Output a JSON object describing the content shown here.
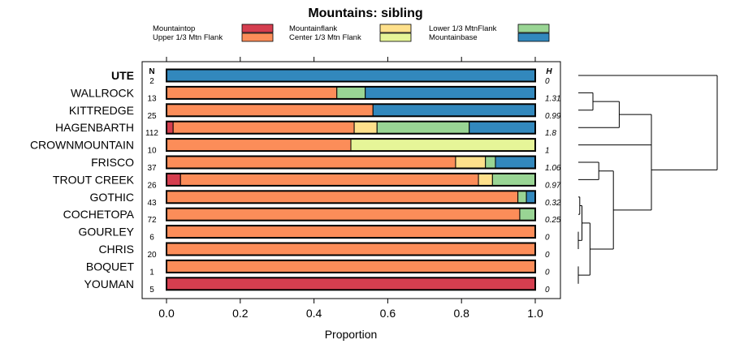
{
  "chart_data": {
    "type": "bar",
    "subtype": "stacked-horizontal-proportion",
    "title": "Mountains: sibling",
    "xlabel": "Proportion",
    "ylabel": "",
    "xlim": [
      0,
      1
    ],
    "x_ticks": [
      0.0,
      0.2,
      0.4,
      0.6,
      0.8,
      1.0
    ],
    "x_tick_labels": [
      "0.0",
      "0.2",
      "0.4",
      "0.6",
      "0.8",
      "1.0"
    ],
    "n_header": "N",
    "h_header": "H",
    "legend": [
      {
        "name": "Mountaintop",
        "color": "#d53e4f"
      },
      {
        "name": "Upper 1/3 Mtn Flank",
        "color": "#fc8d59"
      },
      {
        "name": "Mountainflank",
        "color": "#fee08b"
      },
      {
        "name": "Center 1/3 Mtn Flank",
        "color": "#e6f598"
      },
      {
        "name": "Lower 1/3 MtnFlank",
        "color": "#99d594"
      },
      {
        "name": "Mountainbase",
        "color": "#3288bd"
      }
    ],
    "rows": [
      {
        "label": "UTE",
        "bold": true,
        "n": "2",
        "h": "0",
        "values": [
          0,
          0,
          0,
          0,
          0,
          1.0
        ]
      },
      {
        "label": "WALLROCK",
        "n": "13",
        "h": "1.31",
        "values": [
          0,
          0.462,
          0,
          0,
          0.077,
          0.461
        ]
      },
      {
        "label": "KITTREDGE",
        "n": "25",
        "h": "0.99",
        "values": [
          0,
          0.56,
          0,
          0,
          0,
          0.44
        ]
      },
      {
        "label": "HAGENBARTH",
        "n": "112",
        "h": "1.8",
        "values": [
          0.018,
          0.491,
          0.062,
          0,
          0.25,
          0.179
        ]
      },
      {
        "label": "CROWNMOUNTAIN",
        "n": "10",
        "h": "1",
        "values": [
          0,
          0.5,
          0,
          0.5,
          0,
          0
        ]
      },
      {
        "label": "FRISCO",
        "n": "37",
        "h": "1.06",
        "values": [
          0,
          0.784,
          0.081,
          0,
          0.027,
          0.108
        ]
      },
      {
        "label": "TROUT CREEK",
        "n": "26",
        "h": "0.97",
        "values": [
          0.038,
          0.808,
          0.038,
          0,
          0.116,
          0
        ]
      },
      {
        "label": "GOTHIC",
        "n": "43",
        "h": "0.32",
        "values": [
          0,
          0.953,
          0,
          0,
          0.023,
          0.024
        ]
      },
      {
        "label": "COCHETOPA",
        "n": "72",
        "h": "0.25",
        "values": [
          0,
          0.958,
          0,
          0,
          0.042,
          0
        ]
      },
      {
        "label": "GOURLEY",
        "n": "6",
        "h": "0",
        "values": [
          0,
          1.0,
          0,
          0,
          0,
          0
        ]
      },
      {
        "label": "CHRIS",
        "n": "20",
        "h": "0",
        "values": [
          0,
          1.0,
          0,
          0,
          0,
          0
        ]
      },
      {
        "label": "BOQUET",
        "n": "1",
        "h": "0",
        "values": [
          0,
          1.0,
          0,
          0,
          0,
          0
        ]
      },
      {
        "label": "YOUMAN",
        "n": "5",
        "h": "0",
        "values": [
          1.0,
          0,
          0,
          0,
          0,
          0
        ]
      }
    ],
    "dendrogram": {
      "leaf_order": [
        "UTE",
        "WALLROCK",
        "KITTREDGE",
        "HAGENBARTH",
        "CROWNMOUNTAIN",
        "FRISCO",
        "TROUT CREEK",
        "GOTHIC",
        "COCHETOPA",
        "GOURLEY",
        "CHRIS",
        "BOQUET",
        "YOUMAN"
      ],
      "merges": [
        {
          "a": "leaf:GOURLEY",
          "b": "leaf:CHRIS",
          "height": 0.0
        },
        {
          "a": "leaf:BOQUET",
          "b": "leaf:YOUMAN",
          "height": 0.0
        },
        {
          "a": "leaf:GOTHIC",
          "b": "leaf:COCHETOPA",
          "height": 0.01
        },
        {
          "a": "leaf:WALLROCK",
          "b": "leaf:KITTREDGE",
          "height": 0.1
        },
        {
          "a": "leaf:FRISCO",
          "b": "leaf:TROUT CREEK",
          "height": 0.14
        },
        {
          "a": "node:2",
          "b": "node:0",
          "height": 0.025
        },
        {
          "a": "node:5",
          "b": "node:1",
          "height": 0.08
        },
        {
          "a": "node:3",
          "b": "leaf:HAGENBARTH",
          "height": 0.28
        },
        {
          "a": "node:4",
          "b": "node:6",
          "height": 0.24
        },
        {
          "a": "node:7",
          "b": "leaf:CROWNMOUNTAIN",
          "height": 0.5
        },
        {
          "a": "node:9",
          "b": "node:8",
          "height": 0.5
        },
        {
          "a": "leaf:UTE",
          "b": "node:10",
          "height": 0.95
        }
      ]
    }
  }
}
